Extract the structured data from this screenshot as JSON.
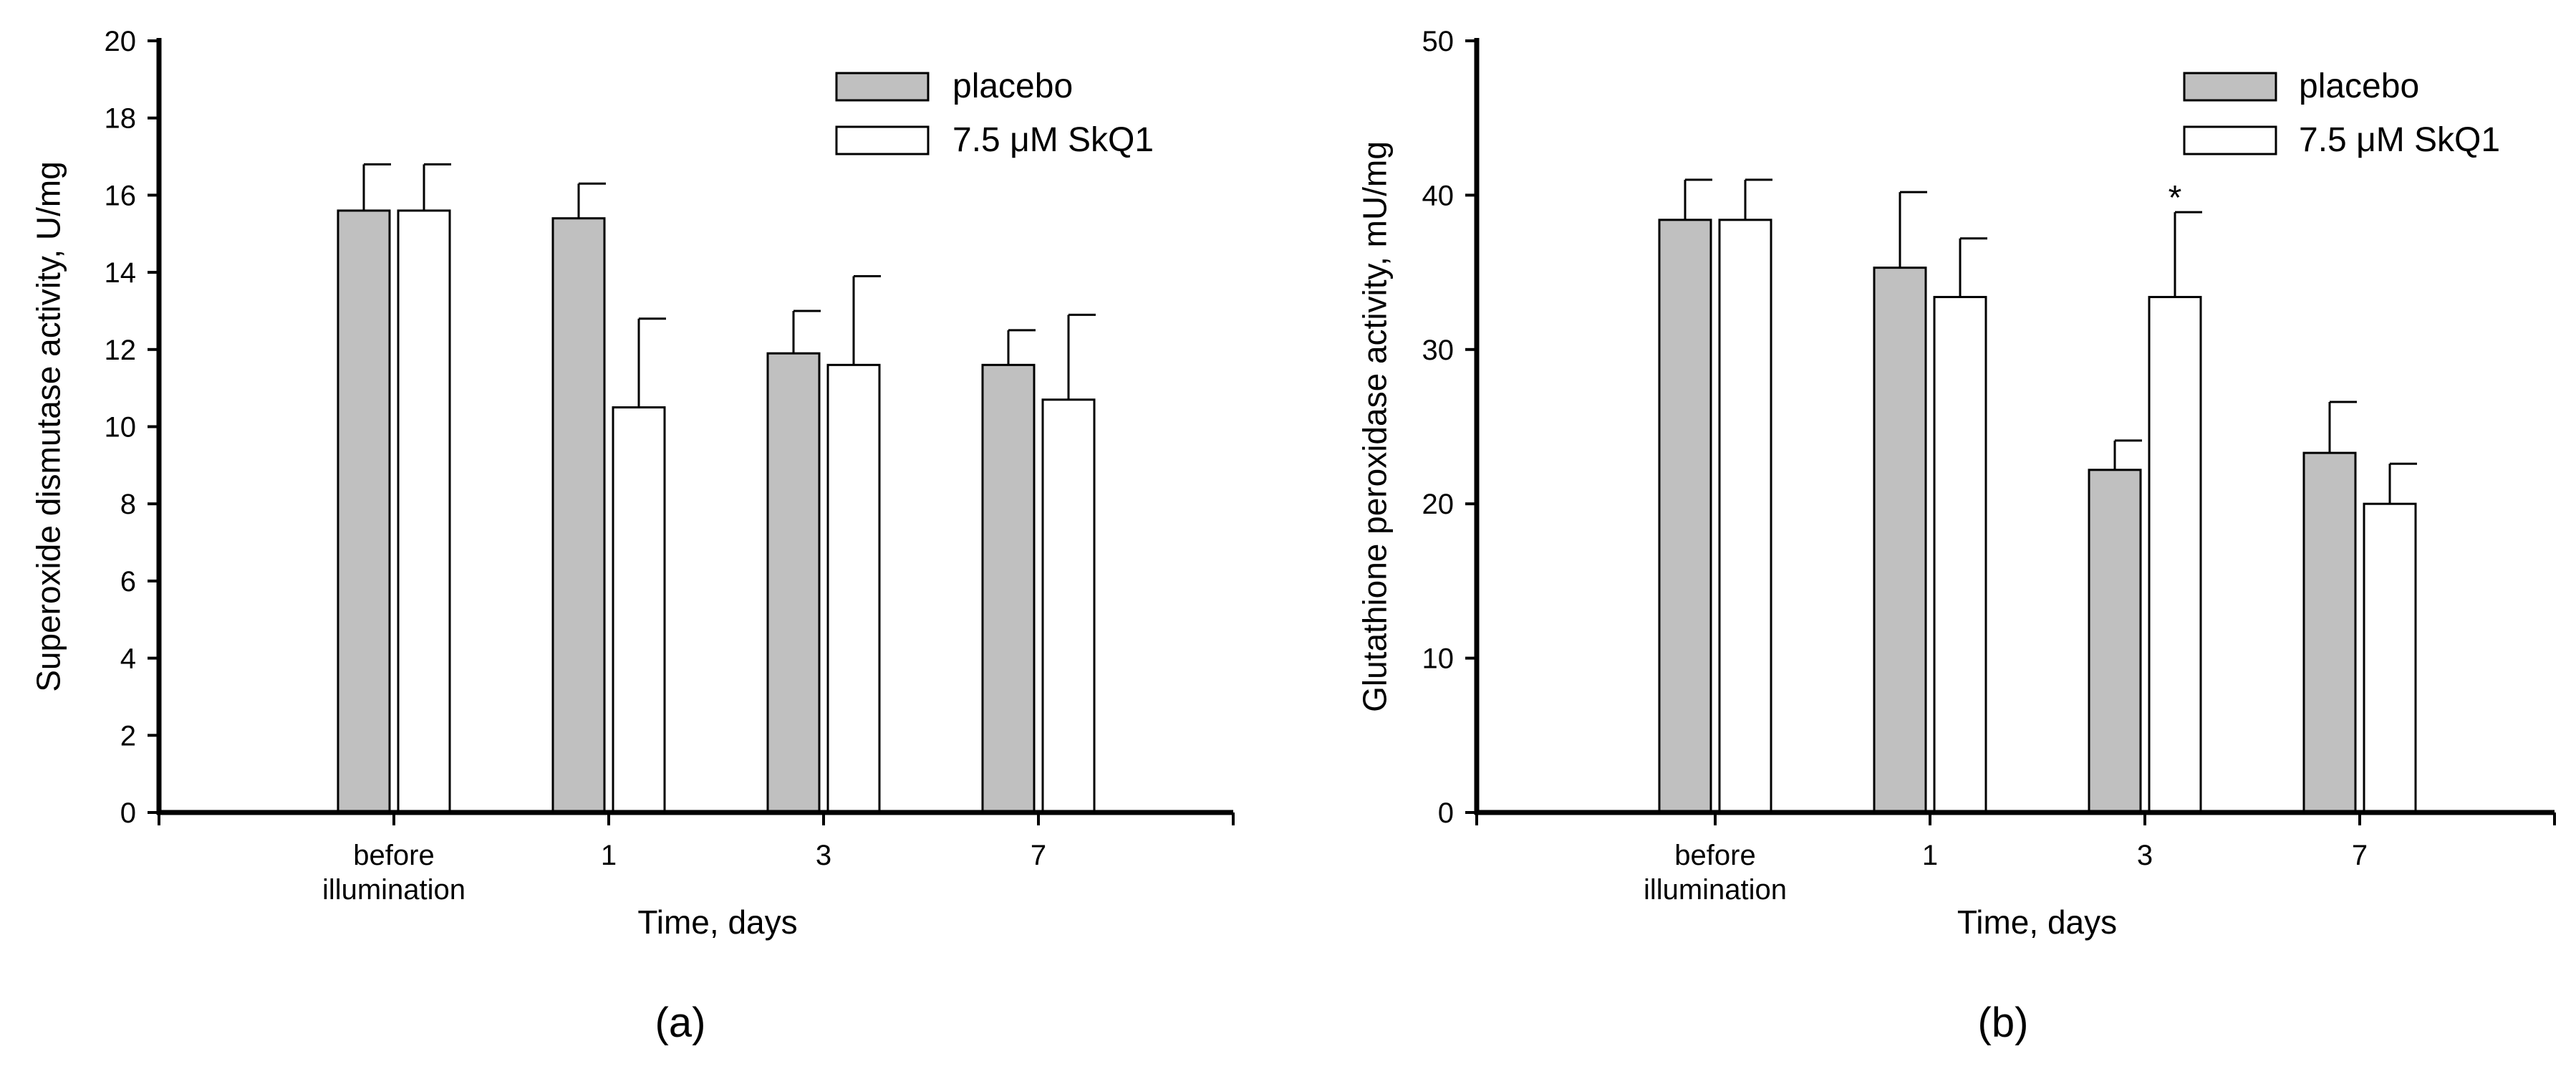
{
  "chart_data": [
    {
      "type": "bar",
      "panel_label": "(a)",
      "xlabel": "Time, days",
      "ylabel": "Superoxide dismutase activity, U/mg",
      "ylim": [
        0,
        20
      ],
      "yticks": [
        0,
        2,
        4,
        6,
        8,
        10,
        12,
        14,
        16,
        18,
        20
      ],
      "categories": [
        [
          "before",
          "illumination"
        ],
        [
          "1"
        ],
        [
          "3"
        ],
        [
          "7"
        ]
      ],
      "legend_position": "top-right",
      "series": [
        {
          "name": "placebo",
          "color": "#c0c0c0",
          "values": [
            15.6,
            15.4,
            11.9,
            11.6
          ],
          "errors": [
            1.2,
            0.9,
            1.1,
            0.9
          ]
        },
        {
          "name": "7.5 μM SkQ1",
          "color": "#ffffff",
          "values": [
            15.6,
            10.5,
            11.6,
            10.7
          ],
          "errors": [
            1.2,
            2.3,
            2.3,
            2.2
          ]
        }
      ],
      "annotations": []
    },
    {
      "type": "bar",
      "panel_label": "(b)",
      "xlabel": "Time, days",
      "ylabel": "Glutathione peroxidase activity, mU/mg",
      "ylim": [
        0,
        50
      ],
      "yticks": [
        0,
        10,
        20,
        30,
        40,
        50
      ],
      "categories": [
        [
          "before",
          "illumination"
        ],
        [
          "1"
        ],
        [
          "3"
        ],
        [
          "7"
        ]
      ],
      "legend_position": "top-right",
      "series": [
        {
          "name": "placebo",
          "color": "#c0c0c0",
          "values": [
            38.4,
            35.3,
            22.2,
            23.3
          ],
          "errors": [
            2.6,
            4.9,
            1.9,
            3.3
          ]
        },
        {
          "name": "7.5 μM SkQ1",
          "color": "#ffffff",
          "values": [
            38.4,
            33.4,
            33.4,
            20.0
          ],
          "errors": [
            2.6,
            3.8,
            5.5,
            2.6
          ]
        }
      ],
      "annotations": [
        {
          "text": "*",
          "category": 2,
          "series": 1
        }
      ]
    }
  ]
}
